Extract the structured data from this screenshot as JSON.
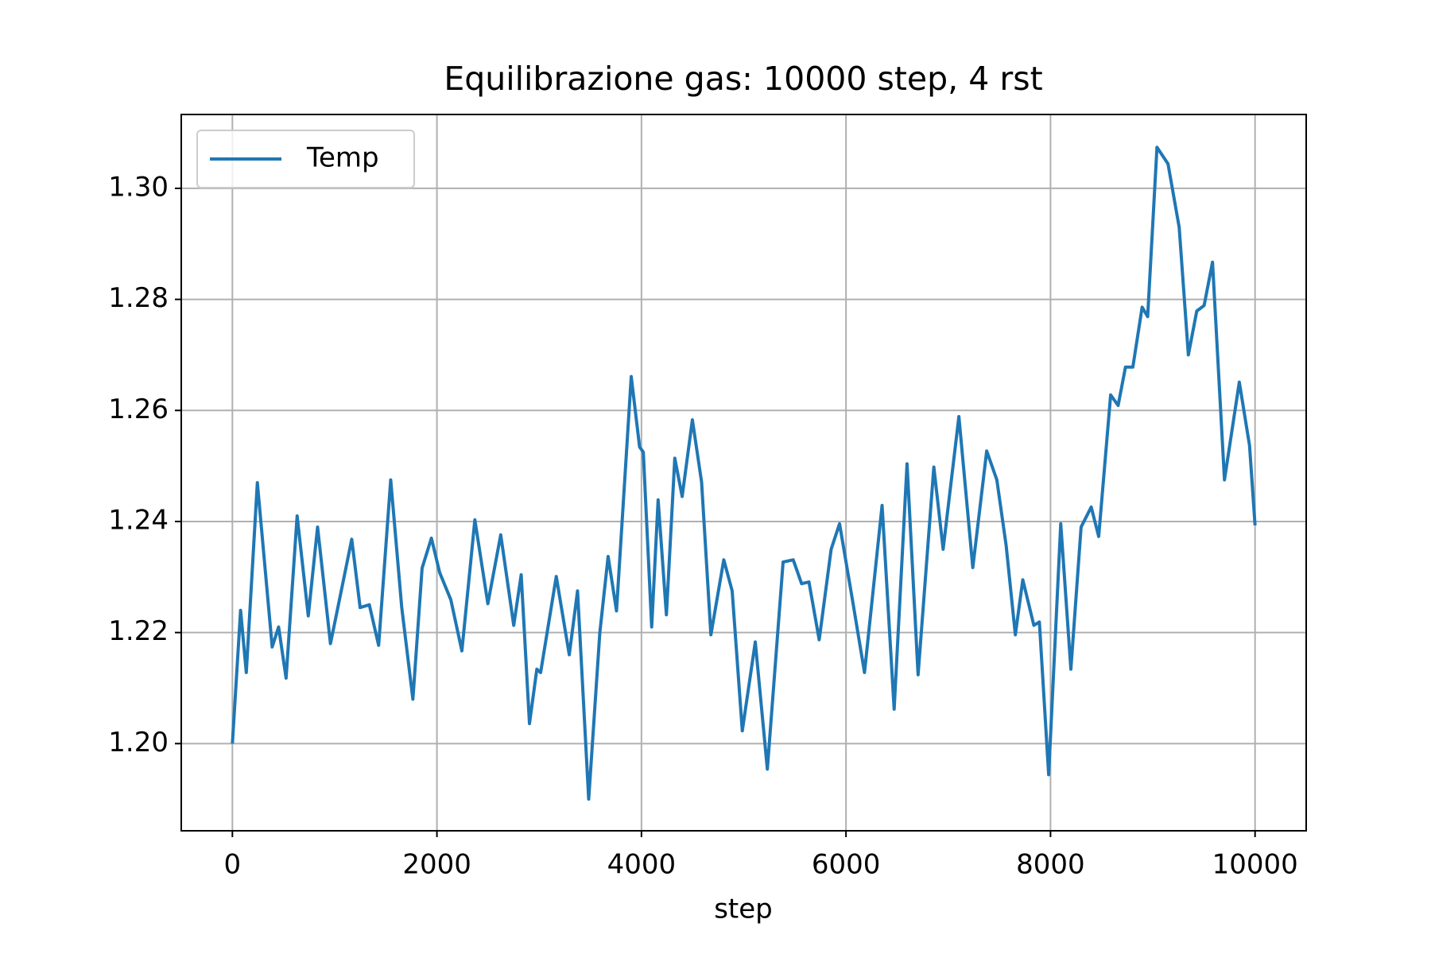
{
  "chart_data": {
    "type": "line",
    "title": "Equilibrazione gas: 10000 step, 4 rst",
    "xlabel": "step",
    "x": [
      0,
      80,
      136,
      244,
      389,
      452,
      525,
      633,
      742,
      833,
      959,
      1059,
      1167,
      1249,
      1339,
      1430,
      1548,
      1656,
      1765,
      1855,
      1946,
      2027,
      2136,
      2244,
      2371,
      2498,
      2624,
      2751,
      2824,
      2905,
      2977,
      3014,
      3167,
      3294,
      3375,
      3484,
      3593,
      3674,
      3756,
      3900,
      3982,
      4018,
      4100,
      4163,
      4244,
      4326,
      4398,
      4498,
      4588,
      4679,
      4805,
      4887,
      4986,
      5113,
      5231,
      5385,
      5484,
      5566,
      5638,
      5738,
      5855,
      5937,
      6063,
      6181,
      6353,
      6471,
      6597,
      6705,
      6859,
      6950,
      7104,
      7240,
      7376,
      7475,
      7566,
      7656,
      7729,
      7837,
      7891,
      7982,
      8100,
      8199,
      8299,
      8398,
      8471,
      8588,
      8661,
      8733,
      8805,
      8896,
      8950,
      9041,
      9149,
      9258,
      9348,
      9430,
      9502,
      9584,
      9701,
      9846,
      9946,
      10000
    ],
    "series": [
      {
        "name": "Temp",
        "color": "#1f77b4",
        "values": [
          1.2,
          1.224,
          1.2128,
          1.247,
          1.2174,
          1.221,
          1.2118,
          1.241,
          1.223,
          1.239,
          1.218,
          1.227,
          1.2368,
          1.2245,
          1.225,
          1.2177,
          1.2475,
          1.2245,
          1.208,
          1.2316,
          1.237,
          1.2308,
          1.2259,
          1.2167,
          1.2403,
          1.2252,
          1.2376,
          1.2213,
          1.2304,
          1.2036,
          1.2134,
          1.2128,
          1.2301,
          1.216,
          1.2275,
          1.19,
          1.22,
          1.2337,
          1.2239,
          1.2661,
          1.2534,
          1.2525,
          1.221,
          1.2439,
          1.2232,
          1.2514,
          1.2445,
          1.2583,
          1.2471,
          1.2196,
          1.2331,
          1.2275,
          1.2023,
          1.2183,
          1.1954,
          1.2327,
          1.2331,
          1.2288,
          1.2291,
          1.2187,
          1.235,
          1.2396,
          1.2259,
          1.2128,
          1.2429,
          1.2062,
          1.2504,
          1.2124,
          1.2498,
          1.235,
          1.2589,
          1.2317,
          1.2527,
          1.2475,
          1.2357,
          1.2196,
          1.2295,
          1.2213,
          1.2219,
          1.1944,
          1.2396,
          1.2134,
          1.239,
          1.2426,
          1.2373,
          1.2628,
          1.2609,
          1.2678,
          1.2678,
          1.2786,
          1.2769,
          1.3074,
          1.3044,
          1.293,
          1.27,
          1.2779,
          1.2789,
          1.2867,
          1.2475,
          1.2651,
          1.2537,
          1.2393
        ]
      }
    ],
    "xlim": [
      -500,
      10500
    ],
    "xticks": [
      0,
      2000,
      4000,
      6000,
      8000,
      10000
    ],
    "ylim": [
      1.1843,
      1.3133
    ],
    "yticks": [
      {
        "value": 1.2,
        "label": "1.20"
      },
      1.22,
      1.24,
      1.26,
      1.28,
      {
        "value": 1.3,
        "label": "1.30"
      }
    ],
    "grid": true,
    "legend": "upper left"
  }
}
